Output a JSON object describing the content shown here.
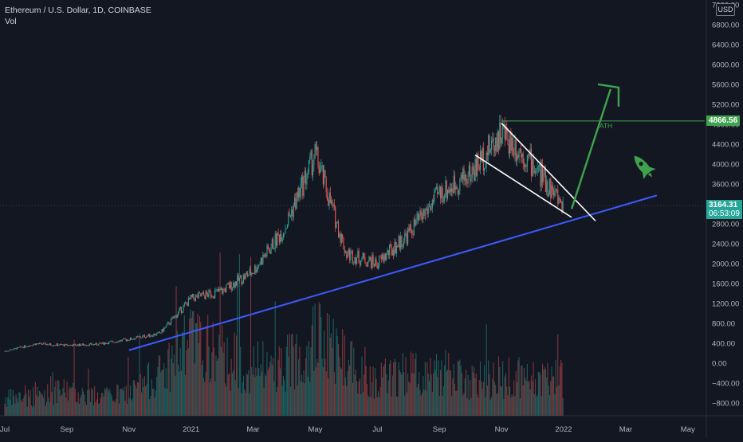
{
  "legend": {
    "title": "Ethereum / U.S. Dollar, 1D, COINBASE",
    "indicator": "Vol"
  },
  "currency_badge": "USD",
  "chart_data": {
    "type": "line",
    "title": "Ethereum / U.S. Dollar, 1D, COINBASE",
    "style": "candlestick",
    "x": [
      "Jul 2020",
      "Sep 2020",
      "Nov 2020",
      "2021",
      "Mar 2021",
      "May 2021",
      "Jul 2021",
      "Sep 2021",
      "Nov 2021",
      "2022",
      "Mar 2022",
      "May 2022"
    ],
    "x_tick_labels": [
      "Jul",
      "Sep",
      "Nov",
      "2021",
      "Mar",
      "May",
      "Jul",
      "Sep",
      "Nov",
      "2022",
      "Mar",
      "May"
    ],
    "y_tick_labels": [
      "7200.00",
      "6800.00",
      "6400.00",
      "6000.00",
      "5600.00",
      "5200.00",
      "4800.00",
      "4400.00",
      "4000.00",
      "3600.00",
      "3200.00",
      "2800.00",
      "2400.00",
      "2000.00",
      "1600.00",
      "1200.00",
      "800.00",
      "400.00",
      "0.00",
      "−400.00",
      "−800.00"
    ],
    "ylim": [
      -900,
      7300
    ],
    "series": [
      {
        "name": "ETHUSD close (approx.)",
        "x": [
          "Jul 2020",
          "Aug 2020",
          "Sep 2020",
          "Oct 2020",
          "Nov 2020",
          "Dec 2020",
          "Jan 2021",
          "Feb 2021",
          "Mar 2021",
          "Apr 2021",
          "May 2021",
          "Jun 2021",
          "Jul 2021",
          "Aug 2021",
          "Sep 2021",
          "Oct 2021",
          "Nov 2021",
          "Dec 2021",
          "Jan 2022"
        ],
        "values": [
          240,
          390,
          360,
          380,
          480,
          600,
          1300,
          1450,
          1850,
          2700,
          4200,
          2200,
          2000,
          2600,
          3400,
          3800,
          4650,
          4000,
          3164
        ]
      }
    ],
    "volume": {
      "name": "Vol",
      "values": [
        120,
        140,
        180,
        130,
        160,
        300,
        520,
        420,
        340,
        360,
        560,
        420,
        260,
        300,
        320,
        240,
        270,
        250,
        280
      ]
    },
    "annotations": {
      "ath_label": "ATH",
      "ath_price": 4866.56,
      "ath_tag": "4866.56",
      "last_price": 3164.31,
      "last_price_tag": "3164.31",
      "countdown": "06:53:09",
      "support_trendline": [
        [
          "Nov 2020",
          260
        ],
        [
          "Apr 2022",
          3370
        ]
      ],
      "falling_wedge_upper": [
        [
          "Nov 2021",
          4820
        ],
        [
          "Jan 2022",
          3050
        ]
      ],
      "falling_wedge_lower": [
        [
          "Oct 2021",
          4180
        ],
        [
          "Jan 2022",
          2930
        ]
      ],
      "breakout_arrow": [
        [
          "Jan 2022",
          3100
        ],
        [
          "Feb 2022",
          5570
        ]
      ],
      "rocket_icon": "rocket-icon"
    },
    "grid": false,
    "colors": {
      "background": "#131722",
      "up": "#26a69a",
      "down": "#ef5350",
      "trendline": "#3d5afe",
      "wedge": "#ffffff",
      "arrow": "#3fa34d",
      "ath_line": "#3fa34d",
      "last_price": "#26a69a"
    }
  }
}
